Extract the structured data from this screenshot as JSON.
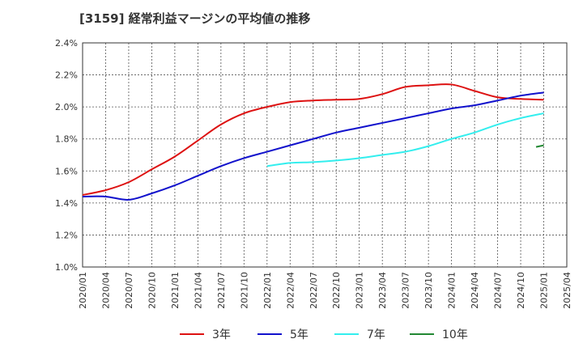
{
  "title": "[3159]  経常利益マージンの平均値の推移",
  "chart_data": {
    "type": "line",
    "title": "[3159]  経常利益マージンの平均値の推移",
    "xlabel": "",
    "ylabel": "",
    "ylim": [
      1.0,
      2.4
    ],
    "yticks": [
      "1.0%",
      "1.2%",
      "1.4%",
      "1.6%",
      "1.8%",
      "2.0%",
      "2.2%",
      "2.4%"
    ],
    "xticks": [
      "2020/01",
      "2020/04",
      "2020/07",
      "2020/10",
      "2021/01",
      "2021/04",
      "2021/07",
      "2021/10",
      "2022/01",
      "2022/04",
      "2022/07",
      "2022/10",
      "2023/01",
      "2023/04",
      "2023/07",
      "2023/10",
      "2024/01",
      "2024/04",
      "2024/07",
      "2024/10",
      "2025/01",
      "2025/04"
    ],
    "grid": true,
    "legend_position": "bottom",
    "series": [
      {
        "name": "3年",
        "color": "#dd1111",
        "x": [
          "2020/01",
          "2020/04",
          "2020/07",
          "2020/10",
          "2021/01",
          "2021/04",
          "2021/07",
          "2021/10",
          "2022/01",
          "2022/04",
          "2022/07",
          "2022/10",
          "2023/01",
          "2023/04",
          "2023/07",
          "2023/10",
          "2024/01",
          "2024/04",
          "2024/07",
          "2024/10",
          "2025/01"
        ],
        "values": [
          1.45,
          1.48,
          1.53,
          1.61,
          1.69,
          1.79,
          1.89,
          1.96,
          2.0,
          2.03,
          2.04,
          2.045,
          2.05,
          2.08,
          2.125,
          2.135,
          2.14,
          2.1,
          2.06,
          2.05,
          2.045
        ]
      },
      {
        "name": "5年",
        "color": "#1111cc",
        "x": [
          "2020/01",
          "2020/04",
          "2020/07",
          "2020/10",
          "2021/01",
          "2021/04",
          "2021/07",
          "2021/10",
          "2022/01",
          "2022/04",
          "2022/07",
          "2022/10",
          "2023/01",
          "2023/04",
          "2023/07",
          "2023/10",
          "2024/01",
          "2024/04",
          "2024/07",
          "2024/10",
          "2025/01"
        ],
        "values": [
          1.44,
          1.44,
          1.42,
          1.46,
          1.51,
          1.57,
          1.63,
          1.68,
          1.72,
          1.76,
          1.8,
          1.84,
          1.87,
          1.9,
          1.93,
          1.96,
          1.99,
          2.01,
          2.04,
          2.07,
          2.09
        ]
      },
      {
        "name": "7年",
        "color": "#33eeee",
        "x": [
          "2022/01",
          "2022/04",
          "2022/07",
          "2022/10",
          "2023/01",
          "2023/04",
          "2023/07",
          "2023/10",
          "2024/01",
          "2024/04",
          "2024/07",
          "2024/10",
          "2025/01"
        ],
        "values": [
          1.63,
          1.65,
          1.655,
          1.665,
          1.68,
          1.7,
          1.72,
          1.755,
          1.8,
          1.84,
          1.89,
          1.93,
          1.96
        ]
      },
      {
        "name": "10年",
        "color": "#228833",
        "x": [
          "2024/12",
          "2025/01"
        ],
        "values": [
          1.75,
          1.76
        ]
      }
    ]
  }
}
